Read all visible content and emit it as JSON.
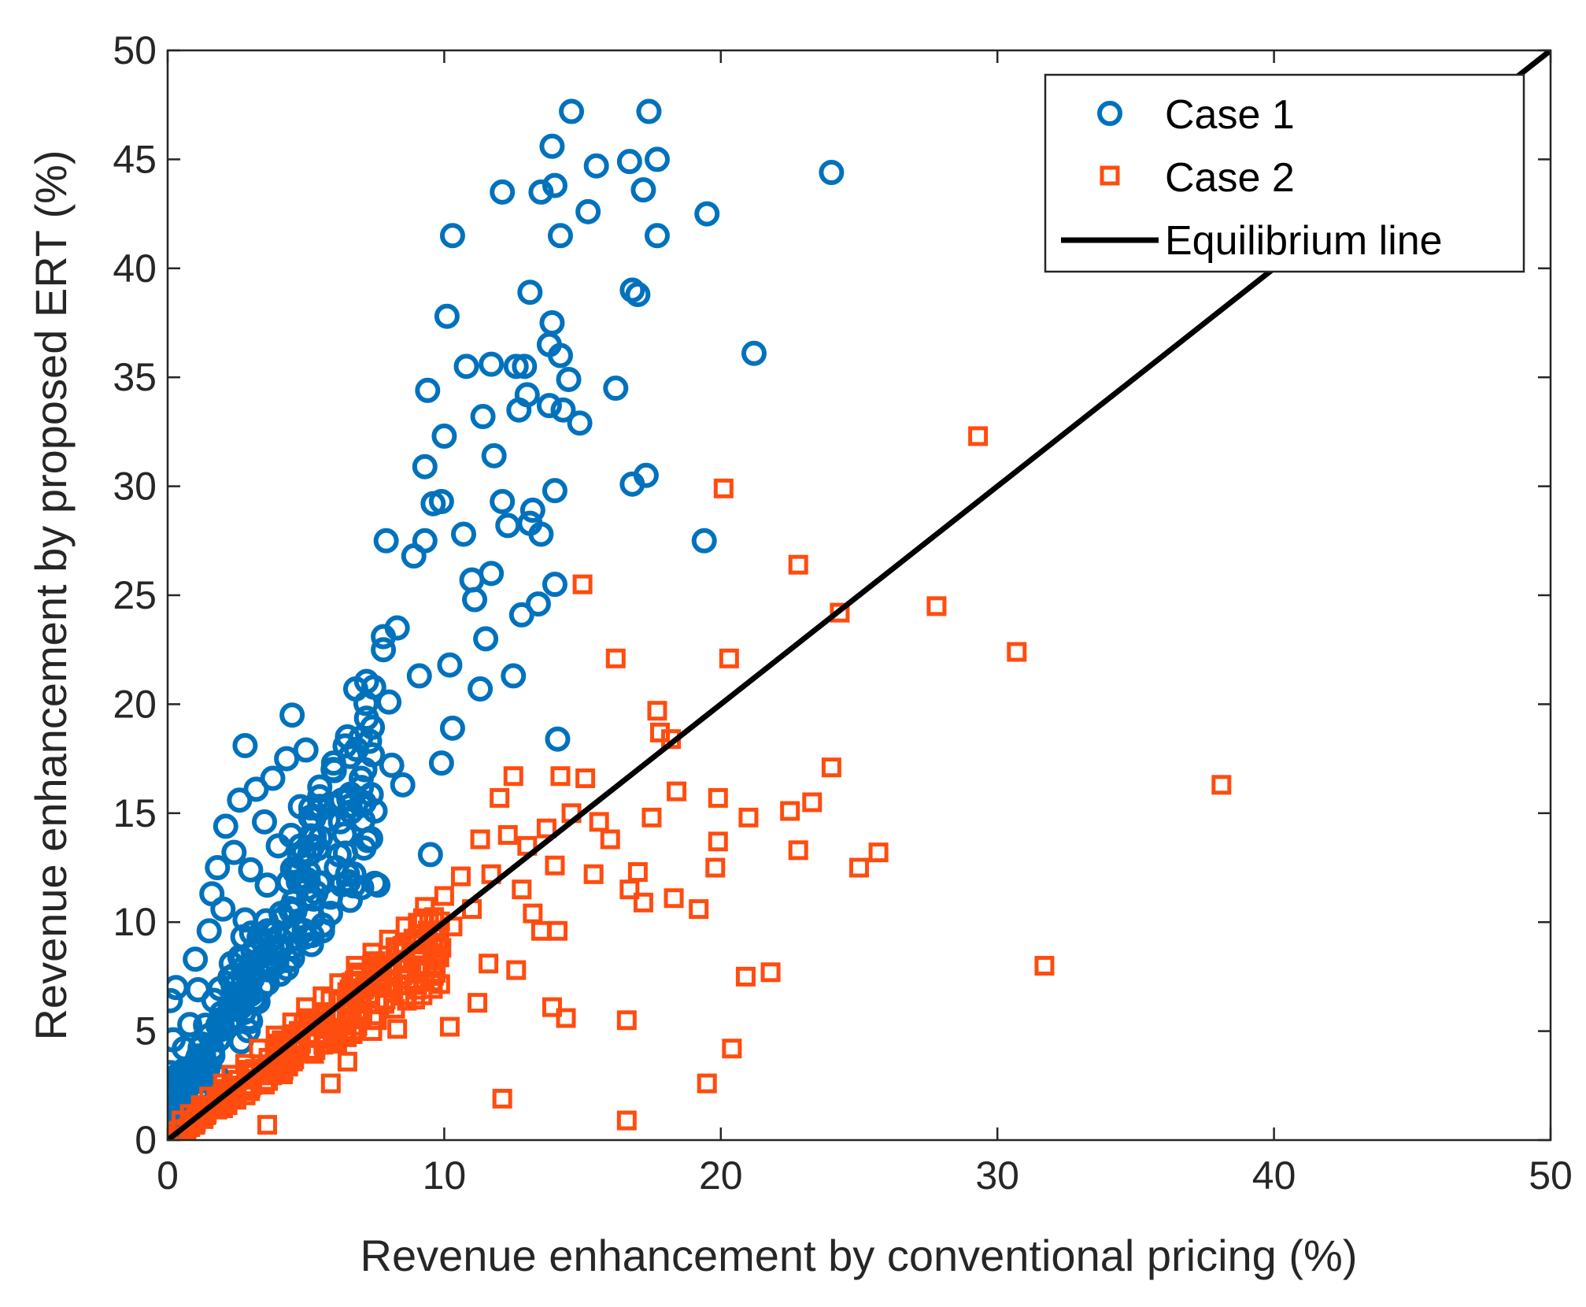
{
  "chart_data": {
    "type": "scatter",
    "title": "",
    "xlabel": "Revenue enhancement by conventional pricing (%)",
    "ylabel": "Revenue enhancement by proposed ERT (%)",
    "xlim": [
      0,
      50
    ],
    "ylim": [
      0,
      50
    ],
    "xticks": [
      "0",
      "10",
      "20",
      "30",
      "40",
      "50"
    ],
    "yticks": [
      "0",
      "5",
      "10",
      "15",
      "20",
      "25",
      "30",
      "35",
      "40",
      "45",
      "50"
    ],
    "grid": false,
    "legend_position": "top-right",
    "series": [
      {
        "name": "Case 1",
        "marker": "circle",
        "color": "#0072BD",
        "points": [
          [
            0.1,
            0.3
          ],
          [
            0.2,
            1.5
          ],
          [
            0.1,
            3.1
          ],
          [
            0.2,
            4.6
          ],
          [
            0.1,
            6.4
          ],
          [
            0.3,
            7.0
          ],
          [
            0.5,
            2.3
          ],
          [
            0.6,
            4.2
          ],
          [
            0.8,
            5.3
          ],
          [
            1.0,
            8.3
          ],
          [
            1.1,
            6.9
          ],
          [
            1.3,
            3.9
          ],
          [
            1.5,
            9.6
          ],
          [
            1.6,
            11.3
          ],
          [
            1.8,
            12.5
          ],
          [
            2.0,
            10.6
          ],
          [
            2.1,
            14.4
          ],
          [
            2.3,
            8.1
          ],
          [
            2.4,
            13.2
          ],
          [
            2.6,
            15.6
          ],
          [
            2.8,
            10.1
          ],
          [
            2.8,
            18.1
          ],
          [
            3.0,
            12.4
          ],
          [
            3.2,
            16.1
          ],
          [
            3.4,
            9.2
          ],
          [
            3.5,
            14.6
          ],
          [
            3.6,
            11.7
          ],
          [
            3.8,
            16.6
          ],
          [
            4.0,
            13.5
          ],
          [
            4.1,
            10.4
          ],
          [
            4.3,
            17.5
          ],
          [
            4.5,
            19.5
          ],
          [
            4.6,
            12.3
          ],
          [
            4.8,
            15.3
          ],
          [
            5.0,
            17.9
          ],
          [
            5.1,
            11.2
          ],
          [
            5.3,
            13.9
          ],
          [
            5.5,
            16.2
          ],
          [
            5.6,
            9.6
          ],
          [
            5.8,
            14.7
          ],
          [
            6.0,
            17.3
          ],
          [
            6.1,
            12.5
          ],
          [
            6.3,
            15.6
          ],
          [
            6.5,
            18.5
          ],
          [
            6.6,
            11.0
          ],
          [
            6.8,
            20.7
          ],
          [
            7.0,
            16.6
          ],
          [
            7.1,
            13.4
          ],
          [
            7.3,
            18.3
          ],
          [
            7.5,
            15.1
          ],
          [
            7.6,
            11.7
          ],
          [
            7.8,
            23.1
          ],
          [
            7.8,
            22.5
          ],
          [
            8.0,
            20.1
          ],
          [
            8.1,
            17.2
          ],
          [
            8.3,
            23.5
          ],
          [
            8.5,
            16.3
          ],
          [
            7.9,
            27.5
          ],
          [
            8.9,
            26.8
          ],
          [
            9.1,
            21.3
          ],
          [
            9.3,
            27.5
          ],
          [
            9.3,
            30.9
          ],
          [
            9.4,
            34.4
          ],
          [
            9.5,
            13.1
          ],
          [
            9.6,
            29.2
          ],
          [
            9.9,
            17.3
          ],
          [
            9.9,
            29.3
          ],
          [
            10.0,
            32.3
          ],
          [
            10.1,
            37.8
          ],
          [
            10.3,
            41.5
          ],
          [
            10.2,
            21.8
          ],
          [
            10.3,
            18.9
          ],
          [
            10.7,
            27.8
          ],
          [
            10.8,
            35.5
          ],
          [
            11.0,
            25.7
          ],
          [
            11.1,
            24.8
          ],
          [
            11.3,
            20.7
          ],
          [
            11.4,
            33.2
          ],
          [
            11.5,
            23.0
          ],
          [
            11.7,
            35.6
          ],
          [
            11.7,
            26.0
          ],
          [
            11.8,
            31.4
          ],
          [
            12.1,
            43.5
          ],
          [
            12.1,
            29.3
          ],
          [
            12.3,
            28.2
          ],
          [
            12.5,
            21.3
          ],
          [
            12.6,
            35.5
          ],
          [
            12.7,
            33.5
          ],
          [
            12.8,
            24.1
          ],
          [
            12.9,
            35.5
          ],
          [
            13.0,
            34.2
          ],
          [
            13.1,
            38.9
          ],
          [
            13.1,
            28.3
          ],
          [
            13.2,
            28.9
          ],
          [
            13.4,
            24.6
          ],
          [
            13.5,
            27.8
          ],
          [
            13.5,
            43.5
          ],
          [
            13.8,
            36.5
          ],
          [
            13.8,
            33.7
          ],
          [
            13.9,
            45.6
          ],
          [
            13.9,
            37.5
          ],
          [
            14.0,
            43.8
          ],
          [
            14.0,
            25.5
          ],
          [
            14.0,
            29.8
          ],
          [
            14.1,
            18.4
          ],
          [
            14.2,
            41.5
          ],
          [
            14.2,
            36.0
          ],
          [
            14.3,
            33.5
          ],
          [
            14.5,
            34.9
          ],
          [
            14.6,
            47.2
          ],
          [
            14.9,
            32.9
          ],
          [
            15.2,
            42.6
          ],
          [
            15.5,
            44.7
          ],
          [
            16.2,
            34.5
          ],
          [
            16.7,
            44.9
          ],
          [
            16.8,
            39.0
          ],
          [
            16.8,
            30.1
          ],
          [
            17.0,
            38.8
          ],
          [
            17.2,
            43.6
          ],
          [
            17.3,
            30.5
          ],
          [
            17.4,
            47.2
          ],
          [
            17.7,
            45.0
          ],
          [
            17.7,
            41.5
          ],
          [
            19.4,
            27.5
          ],
          [
            19.5,
            42.5
          ],
          [
            21.2,
            36.1
          ],
          [
            24.0,
            44.4
          ]
        ]
      },
      {
        "name": "Case 2",
        "marker": "square",
        "color": "#FF4C0F",
        "points": [
          [
            0.2,
            0.4
          ],
          [
            0.5,
            0.9
          ],
          [
            0.8,
            1.2
          ],
          [
            1.0,
            0.7
          ],
          [
            1.2,
            1.6
          ],
          [
            1.5,
            2.0
          ],
          [
            1.8,
            1.4
          ],
          [
            2.0,
            2.6
          ],
          [
            2.3,
            3.0
          ],
          [
            2.5,
            2.2
          ],
          [
            2.8,
            3.5
          ],
          [
            3.0,
            2.8
          ],
          [
            3.3,
            4.2
          ],
          [
            3.6,
            0.7
          ],
          [
            3.6,
            3.3
          ],
          [
            3.9,
            4.8
          ],
          [
            4.2,
            4.0
          ],
          [
            4.5,
            5.4
          ],
          [
            4.8,
            4.6
          ],
          [
            5.0,
            6.1
          ],
          [
            5.3,
            5.2
          ],
          [
            5.6,
            6.6
          ],
          [
            5.9,
            5.7
          ],
          [
            5.9,
            2.6
          ],
          [
            6.2,
            7.2
          ],
          [
            6.5,
            6.3
          ],
          [
            6.5,
            3.6
          ],
          [
            6.8,
            8.0
          ],
          [
            7.1,
            6.9
          ],
          [
            7.4,
            8.6
          ],
          [
            7.4,
            5.0
          ],
          [
            7.7,
            7.5
          ],
          [
            8.0,
            9.2
          ],
          [
            8.3,
            5.1
          ],
          [
            8.3,
            8.1
          ],
          [
            8.6,
            9.8
          ],
          [
            9.0,
            8.7
          ],
          [
            9.3,
            10.7
          ],
          [
            9.6,
            9.3
          ],
          [
            10.0,
            11.2
          ],
          [
            10.2,
            5.2
          ],
          [
            10.3,
            9.8
          ],
          [
            10.6,
            12.1
          ],
          [
            11.0,
            10.6
          ],
          [
            11.2,
            6.3
          ],
          [
            11.3,
            13.8
          ],
          [
            11.6,
            8.1
          ],
          [
            11.7,
            12.2
          ],
          [
            12.0,
            15.7
          ],
          [
            12.1,
            1.9
          ],
          [
            12.3,
            14.0
          ],
          [
            12.5,
            16.7
          ],
          [
            12.6,
            7.8
          ],
          [
            12.8,
            11.5
          ],
          [
            13.0,
            13.5
          ],
          [
            13.2,
            10.4
          ],
          [
            13.5,
            9.6
          ],
          [
            13.7,
            14.3
          ],
          [
            13.9,
            6.1
          ],
          [
            14.0,
            12.6
          ],
          [
            14.1,
            9.6
          ],
          [
            14.2,
            16.7
          ],
          [
            14.4,
            5.6
          ],
          [
            14.6,
            15.0
          ],
          [
            15.0,
            25.5
          ],
          [
            15.1,
            16.6
          ],
          [
            15.4,
            12.2
          ],
          [
            15.6,
            14.6
          ],
          [
            16.0,
            13.8
          ],
          [
            16.2,
            22.1
          ],
          [
            16.6,
            5.5
          ],
          [
            16.6,
            0.9
          ],
          [
            16.7,
            11.5
          ],
          [
            17.0,
            12.3
          ],
          [
            17.2,
            10.9
          ],
          [
            17.5,
            14.8
          ],
          [
            17.7,
            19.7
          ],
          [
            17.8,
            18.7
          ],
          [
            18.2,
            18.4
          ],
          [
            18.3,
            11.1
          ],
          [
            18.4,
            16.0
          ],
          [
            19.2,
            10.6
          ],
          [
            19.5,
            2.6
          ],
          [
            19.8,
            12.5
          ],
          [
            19.9,
            13.7
          ],
          [
            19.9,
            15.7
          ],
          [
            20.1,
            29.9
          ],
          [
            20.3,
            22.1
          ],
          [
            20.4,
            4.2
          ],
          [
            21.0,
            14.8
          ],
          [
            20.9,
            7.5
          ],
          [
            21.8,
            7.7
          ],
          [
            22.5,
            15.1
          ],
          [
            22.8,
            13.3
          ],
          [
            22.8,
            26.4
          ],
          [
            23.3,
            15.5
          ],
          [
            24.0,
            17.1
          ],
          [
            24.3,
            24.2
          ],
          [
            25.0,
            12.5
          ],
          [
            25.7,
            13.2
          ],
          [
            27.8,
            24.5
          ],
          [
            29.3,
            32.3
          ],
          [
            30.7,
            22.4
          ],
          [
            31.7,
            8.0
          ],
          [
            38.1,
            16.3
          ]
        ]
      },
      {
        "name": "Equilibrium line",
        "marker": "line",
        "color": "#000000",
        "points": [
          [
            0,
            0
          ],
          [
            50,
            50
          ]
        ]
      }
    ]
  }
}
